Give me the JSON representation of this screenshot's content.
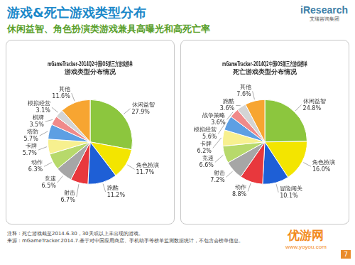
{
  "title": "游戏&死亡游戏类型分布",
  "subtitle": "休闲益智、角色扮演类游戏兼具高曝光和高死亡率",
  "logo": {
    "name": "iResearch",
    "tagline": "艾瑞咨询集团"
  },
  "chart_data": [
    {
      "type": "pie",
      "title": [
        "mGameTracker-2014Q2中国iOS第三方游戏榜单",
        "游戏类型分布情况"
      ],
      "categories": [
        "休闲益智",
        "角色扮演",
        "跑酷",
        "射击",
        "竞速",
        "动作",
        "卡牌",
        "塔防",
        "棋牌",
        "模拟经营",
        "其他"
      ],
      "values": [
        27.9,
        11.7,
        11.2,
        6.7,
        6.5,
        6.3,
        5.7,
        5.7,
        3.5,
        3.1,
        11.6
      ],
      "value_labels": [
        "27.9%",
        "11.7%",
        "11.2%",
        "6.7%",
        "6.5%",
        "6.3%",
        "5.7%",
        "5.7%",
        "3.5%",
        "3.1%",
        "11.6%"
      ],
      "colors": [
        "#8cc63e",
        "#f3e500",
        "#1e5fd6",
        "#e8383d",
        "#a6a6a6",
        "#b7d96b",
        "#f7f08f",
        "#5d9fe3",
        "#f08a8a",
        "#d4d4d4",
        "#f7a531"
      ],
      "data_labels": true
    },
    {
      "type": "pie",
      "title": [
        "mGameTracker-2014Q2中国iOS第三方游戏榜单",
        "死亡游戏类型分布情况"
      ],
      "categories": [
        "休闲益智",
        "角色扮演",
        "冒险闯关",
        "动作",
        "射击",
        "竞速",
        "卡牌",
        "模拟经营",
        "战争策略",
        "跑酷",
        "其他"
      ],
      "values": [
        24.8,
        16.0,
        10.1,
        8.8,
        7.2,
        6.6,
        6.2,
        5.6,
        3.6,
        3.6,
        7.6
      ],
      "value_labels": [
        "24.8%",
        "16.0%",
        "10.1%",
        "8.8%",
        "7.2%",
        "6.6%",
        "6.2%",
        "5.6%",
        "3.6%",
        "3.6%",
        "7.6%"
      ],
      "colors": [
        "#8cc63e",
        "#f3e500",
        "#1e5fd6",
        "#e8383d",
        "#a6a6a6",
        "#b7d96b",
        "#f7f08f",
        "#5d9fe3",
        "#f08a8a",
        "#d4d4d4",
        "#f7a531"
      ],
      "data_labels": true
    }
  ],
  "footnotes": [
    "注释：死亡游戏截至2014.6.30，30天或以上未出现的游戏。",
    "来源：mGameTracker.2014.7.基于对中国应用商店、手机助手等榜单监测数据统计，不包含会榜单信息。"
  ],
  "watermark": {
    "name": "优游网",
    "url": "www.yoyou.com"
  },
  "page_number": 7
}
